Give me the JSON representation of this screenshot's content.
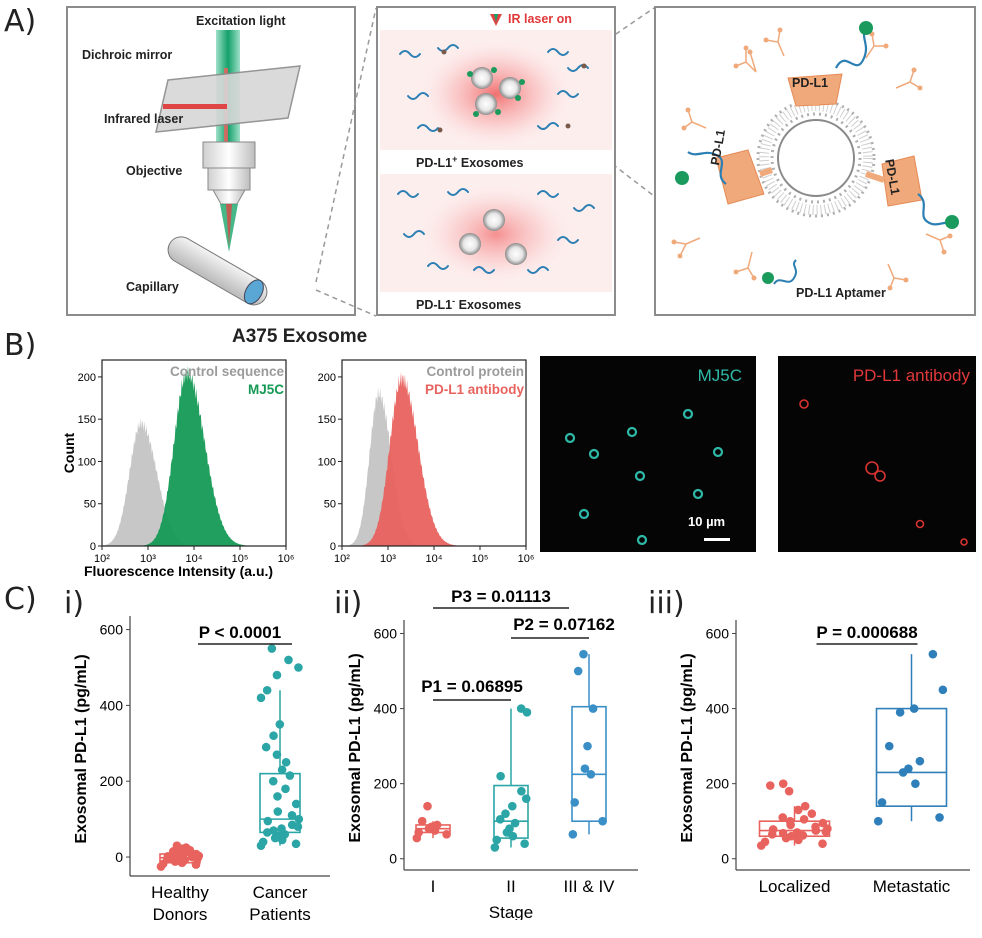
{
  "panel_a": {
    "label": "A)",
    "setup": {
      "excitation": "Excitation light",
      "dichroic": "Dichroic mirror",
      "infrared": "Infrared laser",
      "objective": "Objective",
      "capillary": "Capillary"
    },
    "exosomes": {
      "laser_on": "IR laser on",
      "positive": "PD-L1",
      "positive_sup": "+",
      "negative": "PD-L1",
      "negative_sup": "-",
      "suffix": "Exosomes"
    },
    "schematic": {
      "protein": "PD-L1",
      "aptamer": "PD-L1 Aptamer"
    }
  },
  "panel_b": {
    "label": "B)",
    "title": "A375 Exosome",
    "hist1_legend": [
      "Control sequence",
      "MJ5C"
    ],
    "hist2_legend": [
      "Control protein",
      "PD-L1 antibody"
    ],
    "img1_label": "MJ5C",
    "img2_label": "PD-L1 antibody",
    "scalebar": "10 µm",
    "colors": {
      "green": "#159a55",
      "red": "#e8625e",
      "gray": "#bdbdbd",
      "teal": "#2fb9a8"
    }
  },
  "panel_c": {
    "label": "C)",
    "sub_i": "i)",
    "sub_ii": "ii)",
    "sub_iii": "iii)",
    "p_i": "P < 0.0001",
    "p1": "P1 = 0.06895",
    "p2": "P2 = 0.07162",
    "p3": "P3 = 0.01113",
    "p_iii": "P = 0.000688",
    "xlabel_ii": "Stage"
  },
  "chart_data": [
    {
      "type": "area",
      "id": "hist-mj5c",
      "title": "A375 Exosome",
      "xlabel": "Fluorescence Intensity (a.u.)",
      "ylabel": "Count",
      "x_scale": "log10",
      "xlim": [
        100,
        1000000
      ],
      "ylim": [
        0,
        220
      ],
      "x_ticks": [
        "10²",
        "10³",
        "10⁴",
        "10⁵",
        "10⁶"
      ],
      "y_ticks": [
        "0",
        "50",
        "100",
        "150",
        "200"
      ],
      "series": [
        {
          "name": "Control sequence",
          "color": "#bdbdbd",
          "peak_log10": 2.85,
          "peak_count": 145,
          "width": 0.25
        },
        {
          "name": "MJ5C",
          "color": "#159a55",
          "peak_log10": 3.85,
          "peak_count": 205,
          "width": 0.28
        }
      ]
    },
    {
      "type": "area",
      "id": "hist-pdl1",
      "xlabel": "Fluorescence Intensity (a.u.)",
      "x_scale": "log10",
      "xlim": [
        100,
        1000000
      ],
      "ylim": [
        0,
        220
      ],
      "x_ticks": [
        "10²",
        "10³",
        "10⁴",
        "10⁵",
        "10⁶"
      ],
      "y_ticks": [
        "0",
        "50",
        "100",
        "150",
        "200"
      ],
      "series": [
        {
          "name": "Control protein",
          "color": "#bdbdbd",
          "peak_log10": 2.8,
          "peak_count": 180,
          "width": 0.2
        },
        {
          "name": "PD-L1 antibody",
          "color": "#e8625e",
          "peak_log10": 3.3,
          "peak_count": 198,
          "width": 0.26
        }
      ]
    },
    {
      "type": "box",
      "id": "box-i",
      "ylabel": "Exosomal PD-L1 (pg/mL)",
      "ylim": [
        -50,
        620
      ],
      "y_ticks": [
        0,
        200,
        400,
        600
      ],
      "categories": [
        "Healthy\nDonors",
        "Cancer\nPatients"
      ],
      "groups": [
        {
          "name": "Healthy Donors",
          "color": "#e8625e",
          "min": -25,
          "q1": -15,
          "median": -2,
          "q3": 8,
          "max": 30,
          "points": [
            -25,
            -20,
            -18,
            -15,
            -12,
            -10,
            -8,
            -6,
            -5,
            -3,
            -2,
            0,
            2,
            3,
            5,
            7,
            8,
            10,
            12,
            15,
            18,
            22,
            25,
            30
          ]
        },
        {
          "name": "Cancer Patients",
          "color": "#2ba5a5",
          "min": 30,
          "q1": 65,
          "median": 100,
          "q3": 220,
          "max": 440,
          "points": [
            30,
            35,
            40,
            45,
            50,
            55,
            60,
            65,
            70,
            75,
            80,
            85,
            95,
            100,
            110,
            120,
            140,
            160,
            180,
            200,
            215,
            230,
            250,
            270,
            290,
            320,
            350,
            420,
            440,
            480,
            500,
            520,
            550
          ]
        }
      ]
    },
    {
      "type": "box",
      "id": "box-ii",
      "ylabel": "Exosomal PD-L1 (pg/mL)",
      "xlabel": "Stage",
      "ylim": [
        -30,
        620
      ],
      "y_ticks": [
        0,
        200,
        400,
        600
      ],
      "categories": [
        "I",
        "II",
        "III & IV"
      ],
      "groups": [
        {
          "name": "I",
          "color": "#e8625e",
          "min": 55,
          "q1": 70,
          "median": 80,
          "q3": 90,
          "max": 100,
          "points": [
            55,
            65,
            70,
            75,
            80,
            85,
            90,
            100,
            140
          ]
        },
        {
          "name": "II",
          "color": "#2ba5a5",
          "min": 30,
          "q1": 55,
          "median": 100,
          "q3": 195,
          "max": 400,
          "points": [
            30,
            40,
            50,
            60,
            70,
            80,
            95,
            105,
            120,
            140,
            160,
            180,
            220,
            390,
            400
          ]
        },
        {
          "name": "III & IV",
          "color": "#3b8fc7",
          "min": 65,
          "q1": 100,
          "median": 225,
          "q3": 405,
          "max": 545,
          "points": [
            65,
            100,
            150,
            225,
            240,
            300,
            400,
            500,
            545
          ]
        }
      ]
    },
    {
      "type": "box",
      "id": "box-iii",
      "ylabel": "Exosomal PD-L1 (pg/mL)",
      "ylim": [
        -30,
        620
      ],
      "y_ticks": [
        0,
        200,
        400,
        600
      ],
      "categories": [
        "Localized",
        "Metastatic"
      ],
      "groups": [
        {
          "name": "Localized",
          "color": "#e8625e",
          "min": 35,
          "q1": 60,
          "median": 75,
          "q3": 100,
          "max": 140,
          "points": [
            35,
            40,
            45,
            50,
            55,
            60,
            62,
            65,
            68,
            70,
            72,
            75,
            78,
            80,
            85,
            90,
            95,
            100,
            105,
            110,
            120,
            130,
            140,
            180,
            195,
            200
          ]
        },
        {
          "name": "Metastatic",
          "color": "#2f7fba",
          "min": 100,
          "q1": 140,
          "median": 230,
          "q3": 400,
          "max": 545,
          "points": [
            100,
            110,
            150,
            200,
            230,
            240,
            260,
            300,
            390,
            400,
            450,
            545
          ]
        }
      ]
    }
  ]
}
